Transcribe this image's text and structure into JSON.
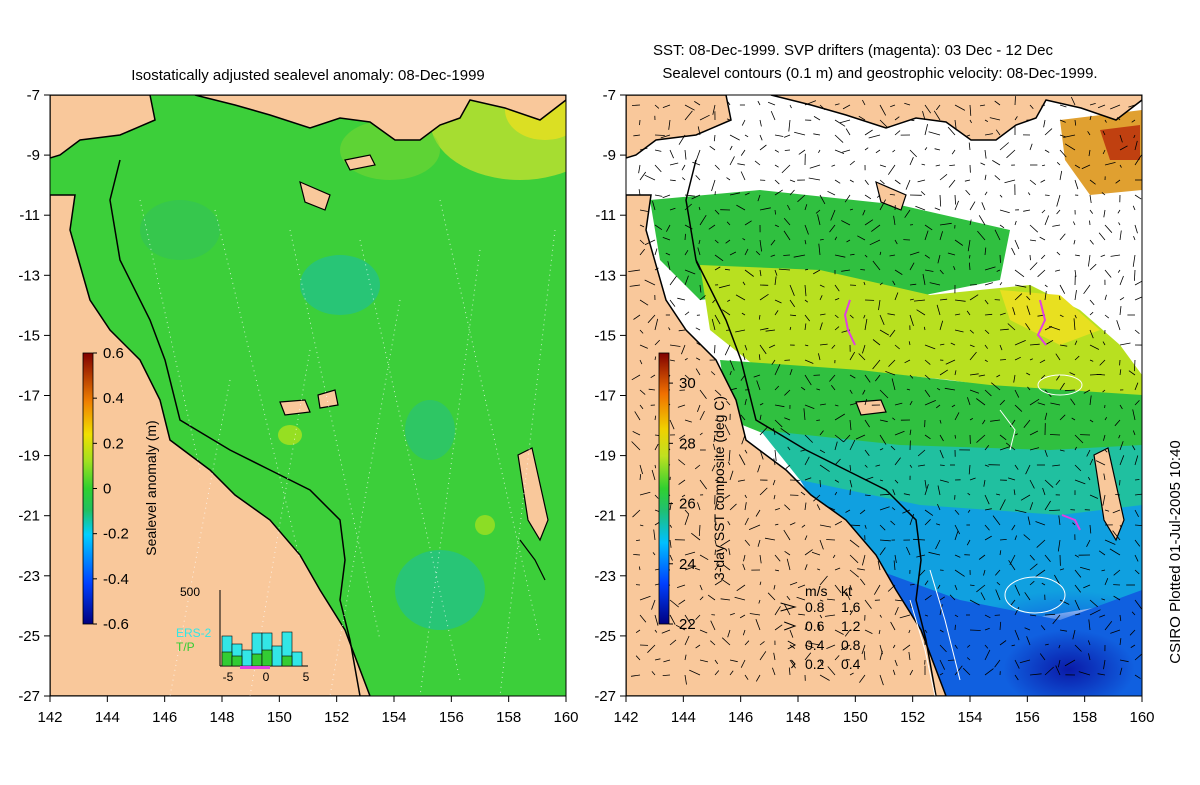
{
  "left_panel": {
    "title": "Isostatically adjusted sealevel anomaly: 08-Dec-1999",
    "colorbar": {
      "label": "Sealevel anomaly (m)",
      "ticks": [
        "0.6",
        "0.4",
        "0.2",
        "0",
        "-0.2",
        "-0.4",
        "-0.6"
      ],
      "range": [
        -0.6,
        0.6
      ]
    },
    "inset": {
      "ymax_label": "500",
      "legend": [
        "ERS-2",
        "T/P"
      ],
      "legend_colors": [
        "#33e6e6",
        "#33cc33"
      ],
      "xticks": [
        "-5",
        "0",
        "5"
      ]
    }
  },
  "right_panel": {
    "title_line1": "SST: 08-Dec-1999. SVP drifters (magenta): 03 Dec - 12 Dec",
    "title_line2": "Sealevel contours (0.1 m) and geostrophic velocity: 08-Dec-1999.",
    "colorbar": {
      "label": "3-day SST composite (deg C)",
      "ticks": [
        "30",
        "28",
        "26",
        "24",
        "22"
      ],
      "range": [
        22,
        31
      ]
    },
    "velocity_legend": {
      "header_ms": "m/s",
      "header_kt": "kt",
      "rows": [
        {
          "ms": "0.8",
          "kt": "1.6"
        },
        {
          "ms": "0.6",
          "kt": "1.2"
        },
        {
          "ms": "0.4",
          "kt": "0.8"
        },
        {
          "ms": "0.2",
          "kt": "0.4"
        }
      ]
    }
  },
  "axes": {
    "y_ticks": [
      "-7",
      "-9",
      "-11",
      "-13",
      "-15",
      "-17",
      "-19",
      "-21",
      "-23",
      "-25",
      "-27"
    ],
    "x_ticks": [
      "142",
      "144",
      "146",
      "148",
      "150",
      "152",
      "154",
      "156",
      "158",
      "160"
    ],
    "lat_range": [
      -27,
      -7
    ],
    "lon_range": [
      142,
      160
    ]
  },
  "credit": "CSIRO Plotted 01-Jul-2005 10:40",
  "colors": {
    "land": "#f9c89b",
    "ocean_sla": "#3ccf3a",
    "coast": "#000000",
    "drifter": "#e040e0"
  }
}
